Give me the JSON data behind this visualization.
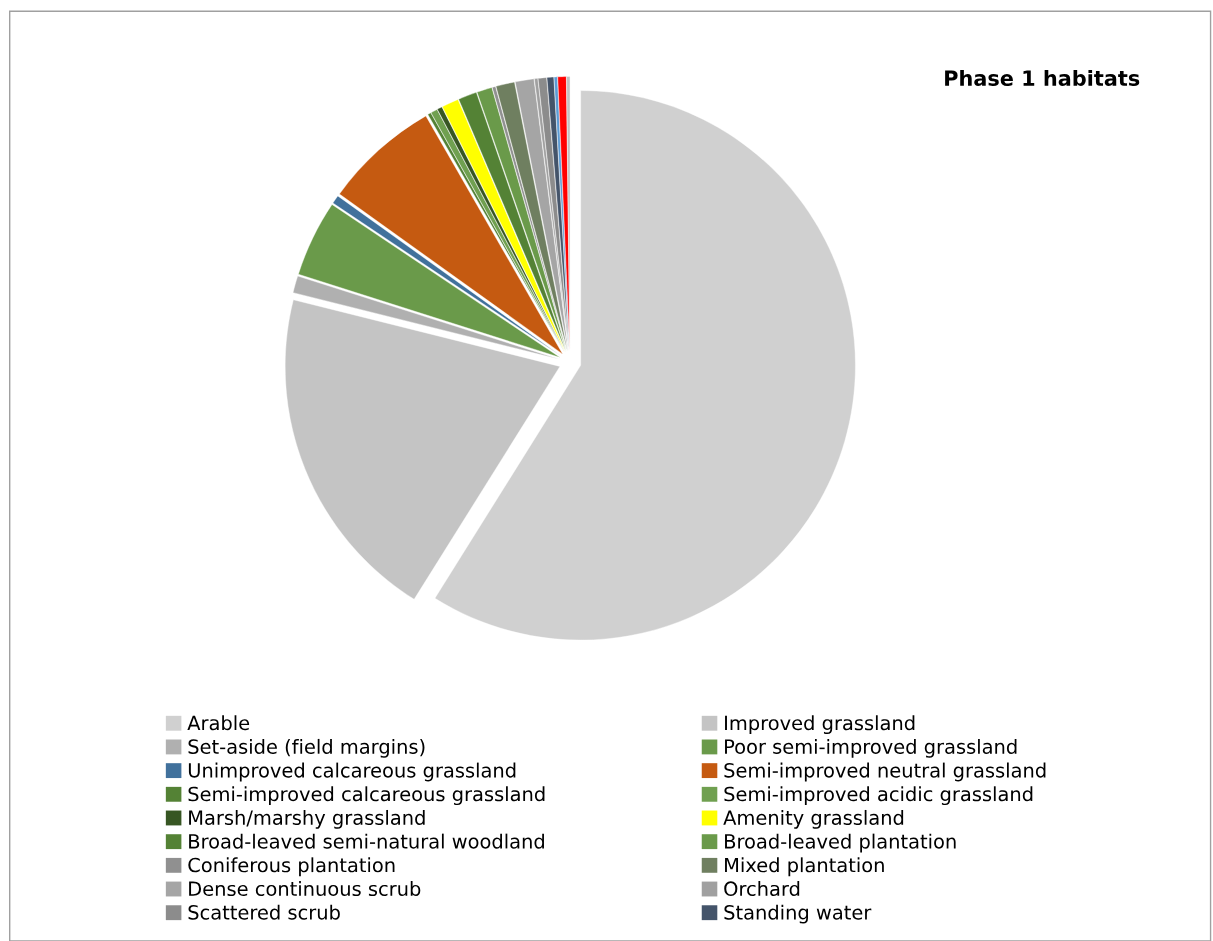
{
  "chart_data": {
    "type": "pie",
    "title": "Phase 1 habitats",
    "categories": [
      "Arable",
      "Improved grassland",
      "Set-aside (field margins)",
      "Poor semi-improved grassland",
      "Unimproved calcareous grassland",
      "Semi-improved neutral grassland",
      "Semi-improved calcareous grassland",
      "Semi-improved acidic grassland",
      "Marsh/marshy grassland",
      "Amenity grassland",
      "Broad-leaved semi-natural woodland",
      "Broad-leaved plantation",
      "Coniferous plantation",
      "Mixed plantation",
      "Dense continuous scrub",
      "Orchard",
      "Scattered scrub",
      "Standing water",
      null,
      null,
      null
    ],
    "values": [
      58.9,
      20,
      1,
      4.5,
      0.5,
      6.8,
      0.2,
      0.4,
      0.3,
      1.0,
      1.1,
      0.9,
      0.2,
      1.1,
      1.1,
      0.2,
      0.5,
      0.4,
      0.2,
      0.5,
      0.2
    ],
    "colors": [
      "#d0d0d0",
      "#c4c4c4",
      "#b0b0b0",
      "#6a9a4a",
      "#41719c",
      "#c55a11",
      "#548235",
      "#70a050",
      "#375623",
      "#ffff00",
      "#548235",
      "#6a9a4a",
      "#909090",
      "#6f7f60",
      "#a5a5a5",
      "#a0a0a0",
      "#8c8c8c",
      "#44546a",
      "#5b9bd5",
      "#ff0000",
      "#c0c0c0"
    ],
    "legend": "bottom"
  }
}
